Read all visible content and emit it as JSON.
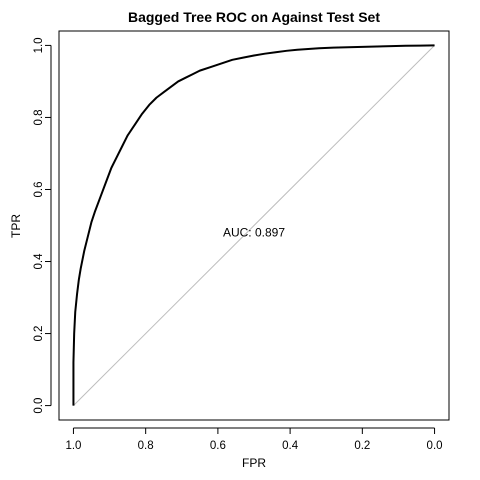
{
  "chart_data": {
    "type": "line",
    "title": "Bagged Tree ROC on Against Test Set",
    "xlabel": "FPR",
    "ylabel": "TPR",
    "xlim": [
      1.04,
      -0.04
    ],
    "ylim": [
      -0.04,
      1.04
    ],
    "x_reversed": true,
    "x_ticks": [
      "1.0",
      "0.8",
      "0.6",
      "0.4",
      "0.2",
      "0.0"
    ],
    "y_ticks": [
      "0.0",
      "0.2",
      "0.4",
      "0.6",
      "0.8",
      "1.0"
    ],
    "grid": false,
    "annotation": {
      "text": "AUC: 0.897",
      "x": 0.5,
      "y": 0.48
    },
    "reference_line": {
      "from": [
        1.0,
        0.0
      ],
      "to": [
        0.0,
        1.0
      ],
      "color": "#bdbdbd"
    },
    "series": [
      {
        "color": "#000000",
        "x": [
          1.0,
          1.0,
          0.998,
          0.995,
          0.99,
          0.985,
          0.98,
          0.97,
          0.96,
          0.95,
          0.94,
          0.925,
          0.91,
          0.895,
          0.88,
          0.865,
          0.85,
          0.83,
          0.81,
          0.79,
          0.77,
          0.75,
          0.73,
          0.71,
          0.69,
          0.67,
          0.65,
          0.62,
          0.59,
          0.56,
          0.53,
          0.5,
          0.47,
          0.44,
          0.41,
          0.38,
          0.35,
          0.32,
          0.28,
          0.24,
          0.2,
          0.16,
          0.12,
          0.08,
          0.04,
          0.0
        ],
        "y": [
          0.0,
          0.12,
          0.2,
          0.26,
          0.31,
          0.35,
          0.38,
          0.43,
          0.47,
          0.51,
          0.54,
          0.58,
          0.62,
          0.66,
          0.69,
          0.72,
          0.75,
          0.78,
          0.81,
          0.835,
          0.855,
          0.87,
          0.885,
          0.9,
          0.91,
          0.92,
          0.93,
          0.94,
          0.95,
          0.96,
          0.966,
          0.972,
          0.977,
          0.981,
          0.985,
          0.988,
          0.99,
          0.992,
          0.994,
          0.995,
          0.996,
          0.997,
          0.998,
          0.999,
          0.9995,
          1.0
        ]
      }
    ]
  }
}
